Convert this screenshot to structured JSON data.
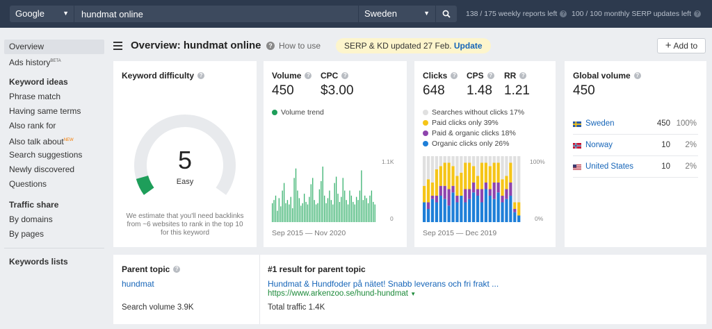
{
  "topbar": {
    "engine": "Google",
    "query": "hundmat online",
    "country": "Sweden",
    "weekly_reports": "138 / 175 weekly reports left",
    "serp_updates": "100 / 100 monthly SERP updates left"
  },
  "sidebar": {
    "items": [
      {
        "label": "Overview"
      },
      {
        "label": "Ads history",
        "sup": "BETA"
      }
    ],
    "keyword_ideas_head": "Keyword ideas",
    "keyword_ideas": [
      {
        "label": "Phrase match"
      },
      {
        "label": "Having same terms"
      },
      {
        "label": "Also rank for"
      },
      {
        "label": "Also talk about",
        "sup": "NEW"
      },
      {
        "label": "Search suggestions"
      },
      {
        "label": "Newly discovered"
      },
      {
        "label": "Questions"
      }
    ],
    "traffic_share_head": "Traffic share",
    "traffic_share": [
      {
        "label": "By domains"
      },
      {
        "label": "By pages"
      }
    ],
    "keywords_lists": "Keywords lists"
  },
  "header": {
    "title": "Overview: hundmat online",
    "how_to": "How to use",
    "banner_text": "SERP & KD updated 27 Feb.",
    "banner_link": "Update",
    "add_to": "Add to"
  },
  "kd": {
    "title": "Keyword difficulty",
    "value": "5",
    "value_num": 5,
    "label": "Easy",
    "note": "We estimate that you'll need backlinks from ~6 websites to rank in the top 10 for this keyword",
    "accent": "#1e9e5a"
  },
  "volume": {
    "volume_label": "Volume",
    "volume_value": "450",
    "cpc_label": "CPC",
    "cpc_value": "$3.00",
    "trend_label": "Volume trend",
    "y_max": "1.1K",
    "y_min": "0",
    "range": "Sep 2015 — Nov 2020",
    "color": "#3cb371"
  },
  "clicks": {
    "clicks_label": "Clicks",
    "clicks_value": "648",
    "cps_label": "CPS",
    "cps_value": "1.48",
    "rr_label": "RR",
    "rr_value": "1.21",
    "legend": [
      {
        "label": "Searches without clicks 17%",
        "color": "#e0e0e0"
      },
      {
        "label": "Paid clicks only 39%",
        "color": "#f5c518"
      },
      {
        "label": "Paid & organic clicks 18%",
        "color": "#8e44ad"
      },
      {
        "label": "Organic clicks only 26%",
        "color": "#1e7fd8"
      }
    ],
    "y_max": "100%",
    "y_min": "0%",
    "range": "Sep 2015 — Dec 2019"
  },
  "global": {
    "title": "Global volume",
    "value": "450",
    "rows": [
      {
        "country": "Sweden",
        "volume": "450",
        "pct": "100%",
        "flag": "se"
      },
      {
        "country": "Norway",
        "volume": "10",
        "pct": "2%",
        "flag": "no"
      },
      {
        "country": "United States",
        "volume": "10",
        "pct": "2%",
        "flag": "us"
      }
    ]
  },
  "parent": {
    "title": "Parent topic",
    "topic": "hundmat",
    "search_volume": "Search volume 3.9K",
    "result_title": "#1 result for parent topic",
    "result_link": "Hundmat & Hundfoder på nätet! Snabb leverans och fri frakt ...",
    "result_url": "https://www.arkenzoo.se/hund-hundmat",
    "total_traffic": "Total traffic 1.4K"
  },
  "chart_data": [
    {
      "type": "bar",
      "name": "Volume trend",
      "ylim": [
        0,
        1100
      ],
      "x_range": [
        "Sep 2015",
        "Nov 2020"
      ],
      "values": [
        300,
        350,
        420,
        180,
        380,
        250,
        500,
        620,
        300,
        350,
        280,
        400,
        220,
        700,
        850,
        500,
        380,
        260,
        300,
        450,
        320,
        280,
        400,
        600,
        700,
        350,
        280,
        300,
        520,
        650,
        880,
        420,
        300,
        380,
        500,
        350,
        280,
        620,
        720,
        450,
        320,
        400,
        700,
        500,
        350,
        280,
        500,
        420,
        320,
        280,
        400,
        350,
        500,
        820,
        350,
        420,
        380,
        300,
        420,
        500,
        320,
        280
      ]
    },
    {
      "type": "bar",
      "name": "Clicks distribution",
      "ylim": [
        0,
        100
      ],
      "x_range": [
        "Sep 2015",
        "Dec 2019"
      ],
      "series_names": [
        "Organic clicks only",
        "Paid & organic clicks",
        "Paid clicks only",
        "Searches without clicks"
      ],
      "stacks": [
        [
          30,
          0,
          25,
          45
        ],
        [
          20,
          10,
          35,
          35
        ],
        [
          35,
          5,
          20,
          40
        ],
        [
          30,
          10,
          40,
          20
        ],
        [
          40,
          15,
          30,
          15
        ],
        [
          35,
          20,
          35,
          10
        ],
        [
          25,
          25,
          40,
          10
        ],
        [
          45,
          10,
          30,
          15
        ],
        [
          30,
          10,
          30,
          30
        ],
        [
          40,
          0,
          35,
          25
        ],
        [
          30,
          20,
          40,
          10
        ],
        [
          35,
          15,
          40,
          10
        ],
        [
          45,
          15,
          25,
          15
        ],
        [
          40,
          10,
          20,
          30
        ],
        [
          30,
          20,
          40,
          10
        ],
        [
          50,
          10,
          30,
          10
        ],
        [
          40,
          10,
          35,
          15
        ],
        [
          35,
          25,
          30,
          10
        ],
        [
          45,
          15,
          30,
          10
        ],
        [
          30,
          10,
          25,
          35
        ],
        [
          35,
          15,
          20,
          30
        ],
        [
          40,
          20,
          30,
          10
        ],
        [
          15,
          5,
          10,
          70
        ],
        [
          10,
          0,
          20,
          70
        ]
      ]
    }
  ]
}
